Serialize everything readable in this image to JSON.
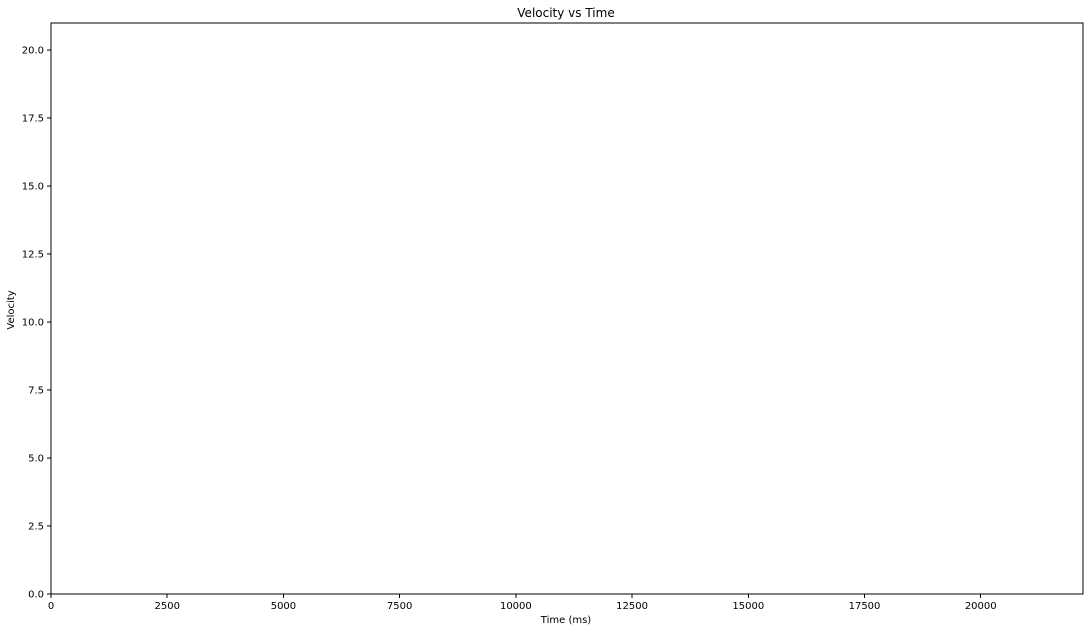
{
  "chart_data": {
    "type": "line",
    "title": "Velocity vs Time",
    "xlabel": "Time (ms)",
    "ylabel": "Velocity",
    "xlim": [
      0,
      22200
    ],
    "ylim": [
      0,
      21
    ],
    "x_ticks": [
      0,
      2500,
      5000,
      7500,
      10000,
      12500,
      15000,
      17500,
      20000
    ],
    "y_ticks": [
      0.0,
      2.5,
      5.0,
      7.5,
      10.0,
      12.5,
      15.0,
      17.5,
      20.0
    ],
    "x_tick_labels": [
      "0",
      "2500",
      "5000",
      "7500",
      "10000",
      "12500",
      "15000",
      "17500",
      "20000"
    ],
    "y_tick_labels": [
      "0.0",
      "2.5",
      "5.0",
      "7.5",
      "10.0",
      "12.5",
      "15.0",
      "17.5",
      "20.0"
    ],
    "grid": false,
    "series": []
  }
}
